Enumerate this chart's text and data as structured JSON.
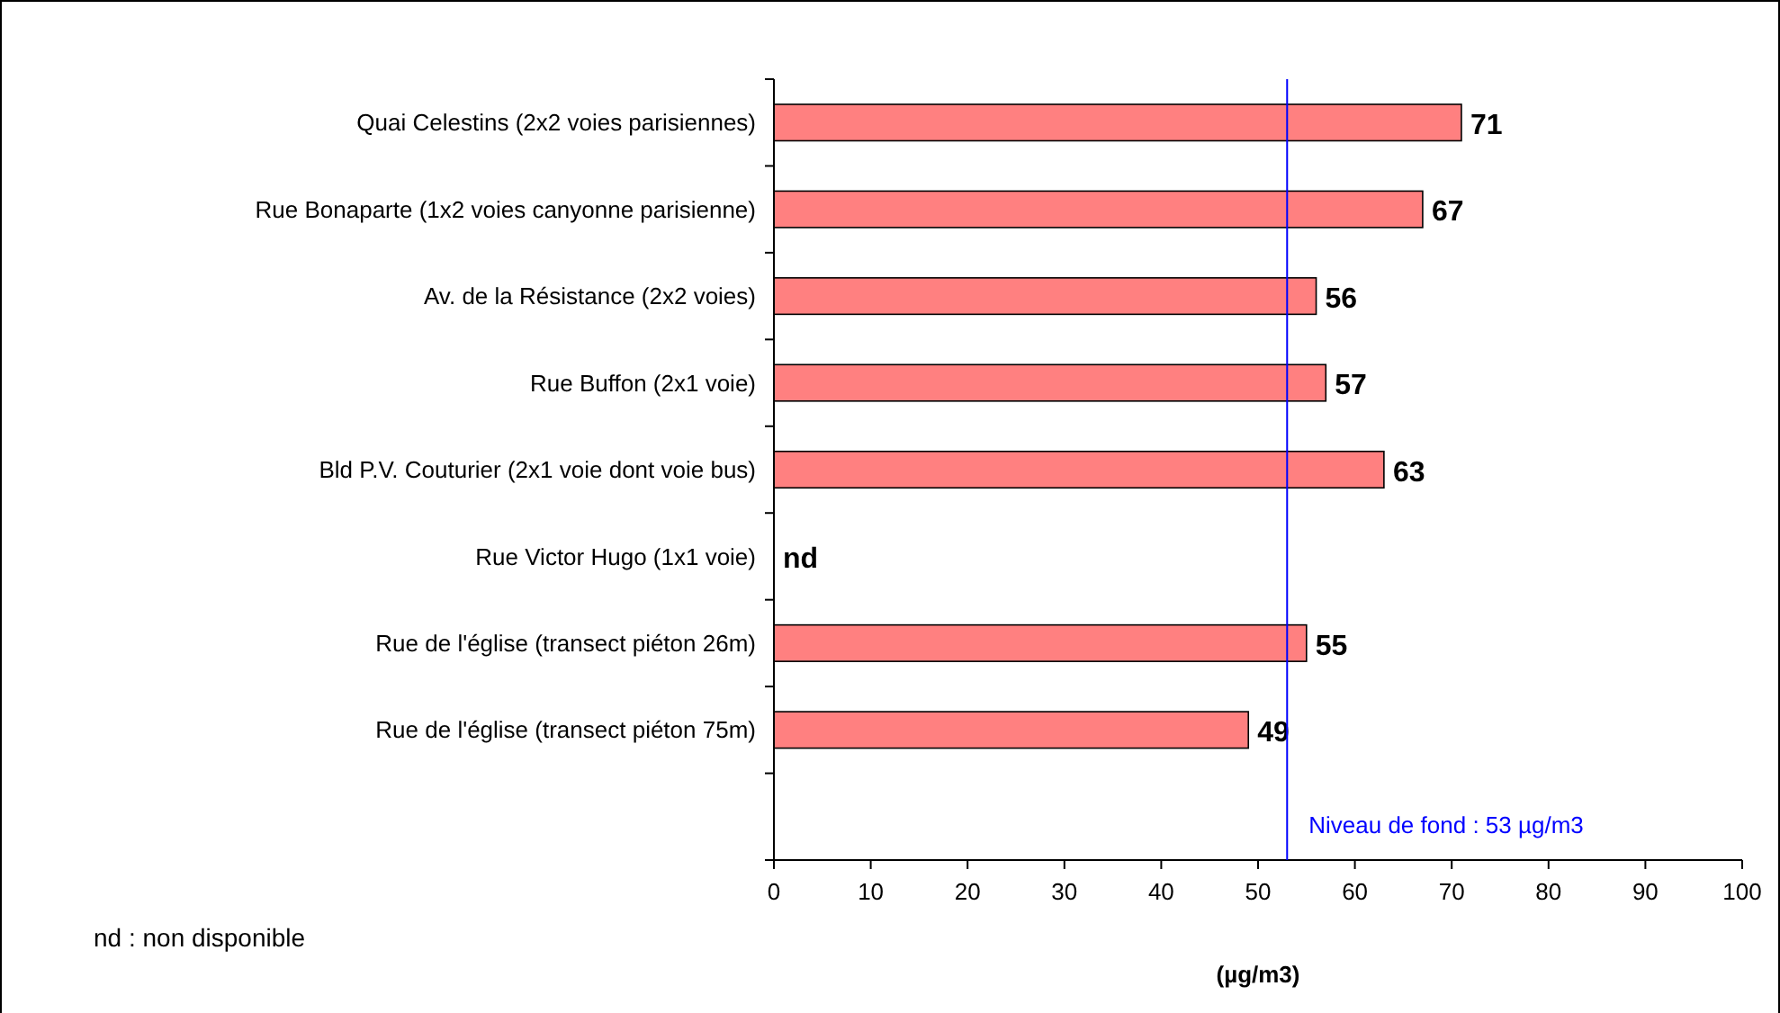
{
  "chart_data": {
    "type": "bar",
    "orientation": "horizontal",
    "xlabel": "(µg/m3)",
    "categories": [
      "Quai Celestins (2x2 voies parisiennes)",
      "Rue Bonaparte (1x2 voies canyonne parisienne)",
      "Av. de la Résistance (2x2 voies)",
      "Rue Buffon (2x1 voie)",
      "Bld P.V. Couturier (2x1 voie dont voie bus)",
      "Rue Victor Hugo (1x1 voie)",
      "Rue de l'église (transect piéton 26m)",
      "Rue de l'église (transect piéton 75m)",
      null
    ],
    "values": [
      71,
      67,
      56,
      57,
      63,
      null,
      55,
      49,
      null
    ],
    "value_labels": [
      "71",
      "67",
      "56",
      "57",
      "63",
      "nd",
      "55",
      "49",
      null
    ],
    "color": "#ff8080",
    "xlim": [
      0,
      100
    ],
    "xticks": [
      0,
      10,
      20,
      30,
      40,
      50,
      60,
      70,
      80,
      90,
      100
    ],
    "grid": false,
    "ref_lines": [
      {
        "axis": "x",
        "value": 53,
        "label": "Niveau de fond : 53 µg/m3",
        "color": "#0000ff"
      }
    ],
    "annotations": [
      "nd : non disponible"
    ]
  }
}
